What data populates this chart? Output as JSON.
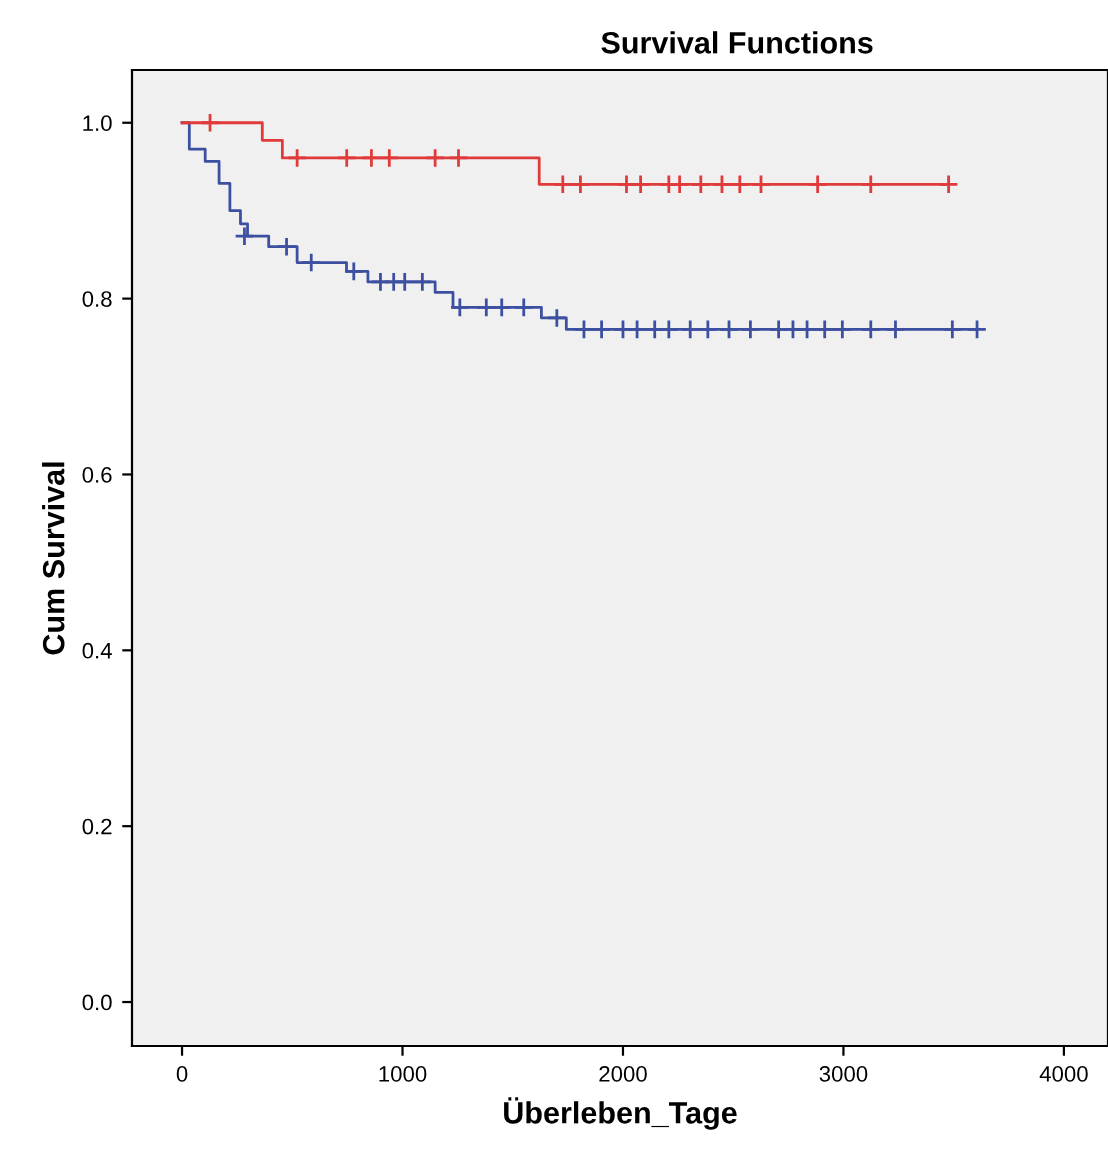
{
  "chart_data": {
    "type": "step",
    "title": "Survival Functions",
    "xlabel": "Überleben_Tage",
    "ylabel": "Cum Survival",
    "xlim": [
      -227,
      4200
    ],
    "ylim": [
      -0.05,
      1.06
    ],
    "xticks": [
      0,
      1000,
      2000,
      3000,
      4000
    ],
    "yticks": [
      {
        "value": 0.0,
        "label": "0.0"
      },
      {
        "value": 0.2,
        "label": "0.2"
      },
      {
        "value": 0.4,
        "label": "0.4"
      },
      {
        "value": 0.6,
        "label": "0.6"
      },
      {
        "value": 0.8,
        "label": "0.8"
      },
      {
        "value": 1.0,
        "label": "1.0"
      }
    ],
    "grid": false,
    "series": [
      {
        "color": "#e03a3a",
        "x": [
          0,
          364,
          455,
          1620,
          3477
        ],
        "values": [
          1.0,
          0.98,
          0.96,
          0.93,
          0.93
        ]
      },
      {
        "color": "#3c4fa0",
        "x": [
          0,
          33,
          105,
          168,
          217,
          265,
          297,
          393,
          522,
          746,
          843,
          1148,
          1229,
          1630,
          1743,
          3606
        ],
        "values": [
          1.0,
          0.97,
          0.956,
          0.931,
          0.9,
          0.885,
          0.871,
          0.859,
          0.841,
          0.831,
          0.819,
          0.807,
          0.79,
          0.778,
          0.765,
          0.765
        ]
      },
      {
        "type": "scatter",
        "marker": "cross",
        "color": "#e03a3a",
        "x": [
          127,
          522,
          747,
          859,
          940,
          1148,
          1254,
          1727,
          1807,
          2016,
          2080,
          2208,
          2257,
          2353,
          2449,
          2530,
          2626,
          2883,
          3124,
          3477
        ],
        "values": [
          1.0,
          0.96,
          0.96,
          0.96,
          0.96,
          0.96,
          0.96,
          0.93,
          0.93,
          0.93,
          0.93,
          0.93,
          0.93,
          0.93,
          0.93,
          0.93,
          0.93,
          0.93,
          0.93,
          0.93
        ]
      },
      {
        "type": "scatter",
        "marker": "cross",
        "color": "#3c4fa0",
        "x": [
          283,
          474,
          586,
          779,
          900,
          960,
          1010,
          1090,
          1260,
          1380,
          1450,
          1550,
          1700,
          1823,
          1903,
          2000,
          2064,
          2144,
          2208,
          2305,
          2385,
          2481,
          2578,
          2706,
          2771,
          2835,
          2915,
          2995,
          3124,
          3236,
          3494,
          3606
        ],
        "values": [
          0.871,
          0.859,
          0.841,
          0.831,
          0.819,
          0.819,
          0.819,
          0.819,
          0.79,
          0.79,
          0.79,
          0.79,
          0.778,
          0.765,
          0.765,
          0.765,
          0.765,
          0.765,
          0.765,
          0.765,
          0.765,
          0.765,
          0.765,
          0.765,
          0.765,
          0.765,
          0.765,
          0.765,
          0.765,
          0.765,
          0.765,
          0.765
        ]
      }
    ]
  }
}
